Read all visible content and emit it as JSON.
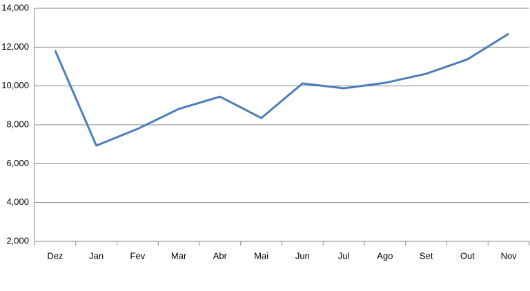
{
  "chart_data": {
    "type": "line",
    "categories": [
      "Dez",
      "Jan",
      "Fev",
      "Mar",
      "Abr",
      "Mai",
      "Jun",
      "Jul",
      "Ago",
      "Set",
      "Out",
      "Nov"
    ],
    "series": [
      {
        "color": "#4a7ebb",
        "values": [
          11830,
          6930,
          7790,
          8820,
          9450,
          8350,
          10130,
          9880,
          10160,
          10630,
          11370,
          12690
        ]
      }
    ],
    "ylim": [
      2000,
      14000
    ],
    "yticks": [
      {
        "value": 2000,
        "label": "2,000"
      },
      {
        "value": 4000,
        "label": "4,000"
      },
      {
        "value": 6000,
        "label": "6,000"
      },
      {
        "value": 8000,
        "label": "8,000"
      },
      {
        "value": 10000,
        "label": "10,000"
      },
      {
        "value": 12000,
        "label": "12,000"
      },
      {
        "value": 14000,
        "label": "14,000"
      }
    ],
    "grid": true
  }
}
